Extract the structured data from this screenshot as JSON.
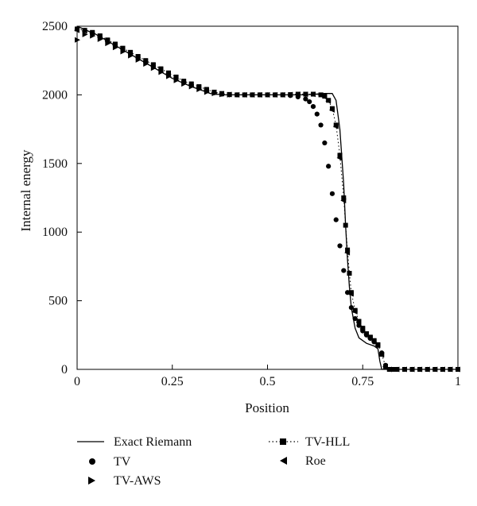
{
  "chart_data": {
    "type": "line",
    "xlabel": "Position",
    "ylabel": "Internal energy",
    "xlim": [
      0,
      1
    ],
    "ylim": [
      0,
      2500
    ],
    "x_ticks": [
      0,
      0.25,
      0.5,
      0.75,
      1
    ],
    "x_tick_labels": [
      "0",
      "0.25",
      "0.5",
      "0.75",
      "1"
    ],
    "y_ticks": [
      0,
      500,
      1000,
      1500,
      2000,
      2500
    ],
    "y_tick_labels": [
      "0",
      "500",
      "1000",
      "1500",
      "2000",
      "2500"
    ],
    "grid": false,
    "legend_position": "bottom",
    "series": [
      {
        "name": "Exact Riemann",
        "style": "solid-line",
        "x": [
          0,
          0.05,
          0.1,
          0.15,
          0.2,
          0.25,
          0.3,
          0.35,
          0.38,
          0.45,
          0.55,
          0.6,
          0.65,
          0.67,
          0.68,
          0.69,
          0.7,
          0.705,
          0.71,
          0.715,
          0.72,
          0.73,
          0.74,
          0.76,
          0.78,
          0.79,
          0.795,
          0.8,
          0.85,
          1
        ],
        "y": [
          2500,
          2440,
          2360,
          2280,
          2200,
          2120,
          2060,
          2010,
          2000,
          2000,
          2000,
          2000,
          2010,
          2010,
          1960,
          1750,
          1350,
          1050,
          800,
          600,
          450,
          300,
          230,
          190,
          170,
          150,
          60,
          0,
          0,
          0
        ]
      },
      {
        "name": "TV",
        "style": "circle",
        "x": [
          0,
          0.02,
          0.04,
          0.06,
          0.08,
          0.1,
          0.12,
          0.14,
          0.16,
          0.18,
          0.2,
          0.22,
          0.24,
          0.26,
          0.28,
          0.3,
          0.32,
          0.34,
          0.36,
          0.38,
          0.4,
          0.42,
          0.44,
          0.46,
          0.48,
          0.5,
          0.52,
          0.54,
          0.56,
          0.58,
          0.6,
          0.61,
          0.62,
          0.63,
          0.64,
          0.65,
          0.66,
          0.67,
          0.68,
          0.69,
          0.7,
          0.71,
          0.72,
          0.73,
          0.74,
          0.75,
          0.76,
          0.77,
          0.78,
          0.79,
          0.8,
          0.81,
          0.82,
          0.84,
          0.86,
          0.88,
          0.9,
          0.92,
          0.94,
          0.96,
          0.98,
          1
        ],
        "y": [
          2480,
          2470,
          2450,
          2420,
          2390,
          2360,
          2330,
          2300,
          2270,
          2240,
          2210,
          2180,
          2150,
          2120,
          2090,
          2070,
          2050,
          2030,
          2015,
          2005,
          2000,
          2000,
          2000,
          2000,
          2000,
          2000,
          2000,
          2000,
          1995,
          1985,
          1970,
          1950,
          1915,
          1860,
          1780,
          1650,
          1480,
          1280,
          1090,
          900,
          720,
          560,
          450,
          370,
          320,
          280,
          250,
          225,
          200,
          175,
          120,
          30,
          0,
          0,
          0,
          0,
          0,
          0,
          0,
          0,
          0,
          0
        ]
      },
      {
        "name": "TV-AWS",
        "style": "right-triangle",
        "x": [
          0,
          0.02,
          0.04,
          0.06,
          0.08,
          0.1,
          0.12,
          0.14,
          0.16,
          0.18,
          0.2,
          0.22,
          0.24,
          0.26,
          0.28,
          0.3,
          0.32,
          0.34,
          0.36,
          0.38,
          0.4
        ],
        "y": [
          2400,
          2440,
          2430,
          2405,
          2375,
          2345,
          2315,
          2285,
          2255,
          2225,
          2195,
          2165,
          2135,
          2105,
          2080,
          2060,
          2040,
          2020,
          2010,
          2003,
          2000
        ]
      },
      {
        "name": "TV-HLL",
        "style": "dotted-square",
        "x": [
          0,
          0.02,
          0.04,
          0.06,
          0.08,
          0.1,
          0.12,
          0.14,
          0.16,
          0.18,
          0.2,
          0.22,
          0.24,
          0.26,
          0.28,
          0.3,
          0.32,
          0.34,
          0.36,
          0.38,
          0.4,
          0.42,
          0.44,
          0.46,
          0.48,
          0.5,
          0.52,
          0.54,
          0.56,
          0.58,
          0.6,
          0.62,
          0.64,
          0.65,
          0.66,
          0.67,
          0.68,
          0.69,
          0.7,
          0.705,
          0.71,
          0.715,
          0.72,
          0.73,
          0.74,
          0.75,
          0.76,
          0.77,
          0.78,
          0.79,
          0.8,
          0.81,
          0.82,
          0.83,
          0.84,
          0.86,
          0.88,
          0.9,
          0.92,
          0.94,
          0.96,
          0.98,
          1
        ],
        "y": [
          2480,
          2470,
          2455,
          2430,
          2400,
          2370,
          2340,
          2310,
          2280,
          2250,
          2220,
          2190,
          2160,
          2130,
          2100,
          2080,
          2060,
          2040,
          2020,
          2010,
          2003,
          2000,
          2000,
          2000,
          2000,
          2000,
          2000,
          2000,
          2002,
          2005,
          2005,
          2005,
          2000,
          1990,
          1960,
          1900,
          1780,
          1560,
          1250,
          1050,
          870,
          700,
          560,
          430,
          350,
          300,
          260,
          235,
          210,
          180,
          110,
          20,
          0,
          0,
          0,
          0,
          0,
          0,
          0,
          0,
          0,
          0,
          0
        ]
      },
      {
        "name": "Roe",
        "style": "left-triangle",
        "x": [
          0,
          0.02,
          0.04,
          0.06,
          0.08,
          0.1,
          0.12,
          0.14,
          0.16,
          0.18,
          0.2,
          0.22,
          0.24,
          0.26,
          0.28,
          0.3,
          0.32,
          0.34,
          0.36,
          0.38,
          0.4,
          0.42,
          0.44,
          0.46,
          0.48,
          0.5,
          0.52,
          0.54,
          0.56,
          0.58,
          0.6,
          0.62,
          0.64,
          0.65,
          0.66,
          0.67,
          0.68,
          0.69,
          0.7,
          0.71,
          0.72,
          0.73,
          0.74,
          0.75,
          0.76,
          0.77,
          0.78,
          0.79,
          0.8,
          0.81,
          0.82,
          0.84,
          0.86,
          0.88,
          0.9,
          0.92,
          0.94,
          0.96,
          0.98,
          1
        ],
        "y": [
          2470,
          2465,
          2450,
          2425,
          2395,
          2365,
          2335,
          2305,
          2275,
          2245,
          2215,
          2185,
          2155,
          2125,
          2095,
          2075,
          2055,
          2035,
          2018,
          2008,
          2002,
          2000,
          2000,
          2000,
          2000,
          2000,
          2000,
          2000,
          2002,
          2004,
          2004,
          2004,
          1998,
          1985,
          1955,
          1890,
          1770,
          1540,
          1230,
          850,
          550,
          420,
          345,
          295,
          255,
          230,
          205,
          175,
          105,
          20,
          0,
          0,
          0,
          0,
          0,
          0,
          0,
          0,
          0,
          0
        ]
      }
    ]
  }
}
